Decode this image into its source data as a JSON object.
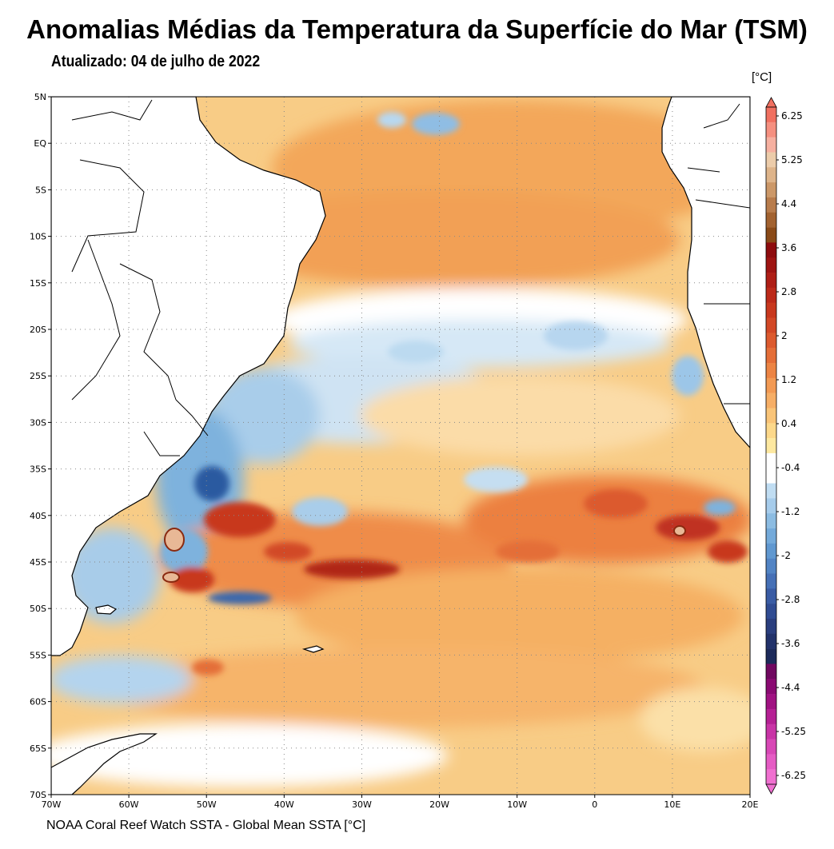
{
  "title": "Anomalias Médias da Temperatura da Superfície do Mar (TSM)",
  "subtitle": "Atualizado: 04 de julho de 2022",
  "unit_label": "[°C]",
  "footer": "NOAA Coral Reef Watch SSTA - Global Mean SSTA [°C]",
  "map": {
    "region": "South Atlantic Ocean",
    "lon_range": [
      -70,
      20
    ],
    "lat_range": [
      -70,
      5
    ],
    "grid": "dotted"
  },
  "x_ticks": [
    {
      "value": -70,
      "label": "70W"
    },
    {
      "value": -60,
      "label": "60W"
    },
    {
      "value": -50,
      "label": "50W"
    },
    {
      "value": -40,
      "label": "40W"
    },
    {
      "value": -30,
      "label": "30W"
    },
    {
      "value": -20,
      "label": "20W"
    },
    {
      "value": -10,
      "label": "10W"
    },
    {
      "value": 0,
      "label": "0"
    },
    {
      "value": 10,
      "label": "10E"
    },
    {
      "value": 20,
      "label": "20E"
    }
  ],
  "y_ticks": [
    {
      "value": 5,
      "label": "5N"
    },
    {
      "value": 0,
      "label": "EQ"
    },
    {
      "value": -5,
      "label": "5S"
    },
    {
      "value": -10,
      "label": "10S"
    },
    {
      "value": -15,
      "label": "15S"
    },
    {
      "value": -20,
      "label": "20S"
    },
    {
      "value": -25,
      "label": "25S"
    },
    {
      "value": -30,
      "label": "30S"
    },
    {
      "value": -35,
      "label": "35S"
    },
    {
      "value": -40,
      "label": "40S"
    },
    {
      "value": -45,
      "label": "45S"
    },
    {
      "value": -50,
      "label": "50S"
    },
    {
      "value": -55,
      "label": "55S"
    },
    {
      "value": -60,
      "label": "60S"
    },
    {
      "value": -65,
      "label": "65S"
    },
    {
      "value": -70,
      "label": "70S"
    }
  ],
  "colorbar": {
    "colors": [
      "#f070d0",
      "#e55cc4",
      "#d848b6",
      "#c834a6",
      "#b52094",
      "#a01282",
      "#8a0a72",
      "#700860",
      "#1c2a5a",
      "#22326a",
      "#2a3e7e",
      "#304c92",
      "#3a5ca4",
      "#4670b6",
      "#5284c4",
      "#6098d0",
      "#74aada",
      "#8cbce2",
      "#a6cceb",
      "#c0ddf2",
      "#ffffff",
      "#ffffff",
      "#fde8a0",
      "#fcd88a",
      "#f9c478",
      "#f6ae66",
      "#f29a54",
      "#ec8444",
      "#e46e38",
      "#dc5a2e",
      "#d24826",
      "#c8381e",
      "#bc2a1a",
      "#ae1e16",
      "#9e1412",
      "#8e0c0e",
      "#8a4a18",
      "#a26230",
      "#b87c4c",
      "#cc9868",
      "#deb48a",
      "#ecccaa",
      "#f6b0a0",
      "#f59080",
      "#f07060"
    ],
    "tick_labels": [
      "6.25",
      "5.25",
      "4.4",
      "3.6",
      "2.8",
      "2",
      "1.2",
      "0.4",
      "-0.4",
      "-1.2",
      "-2",
      "-2.8",
      "-3.6",
      "-4.4",
      "-5.25",
      "-6.25"
    ]
  }
}
